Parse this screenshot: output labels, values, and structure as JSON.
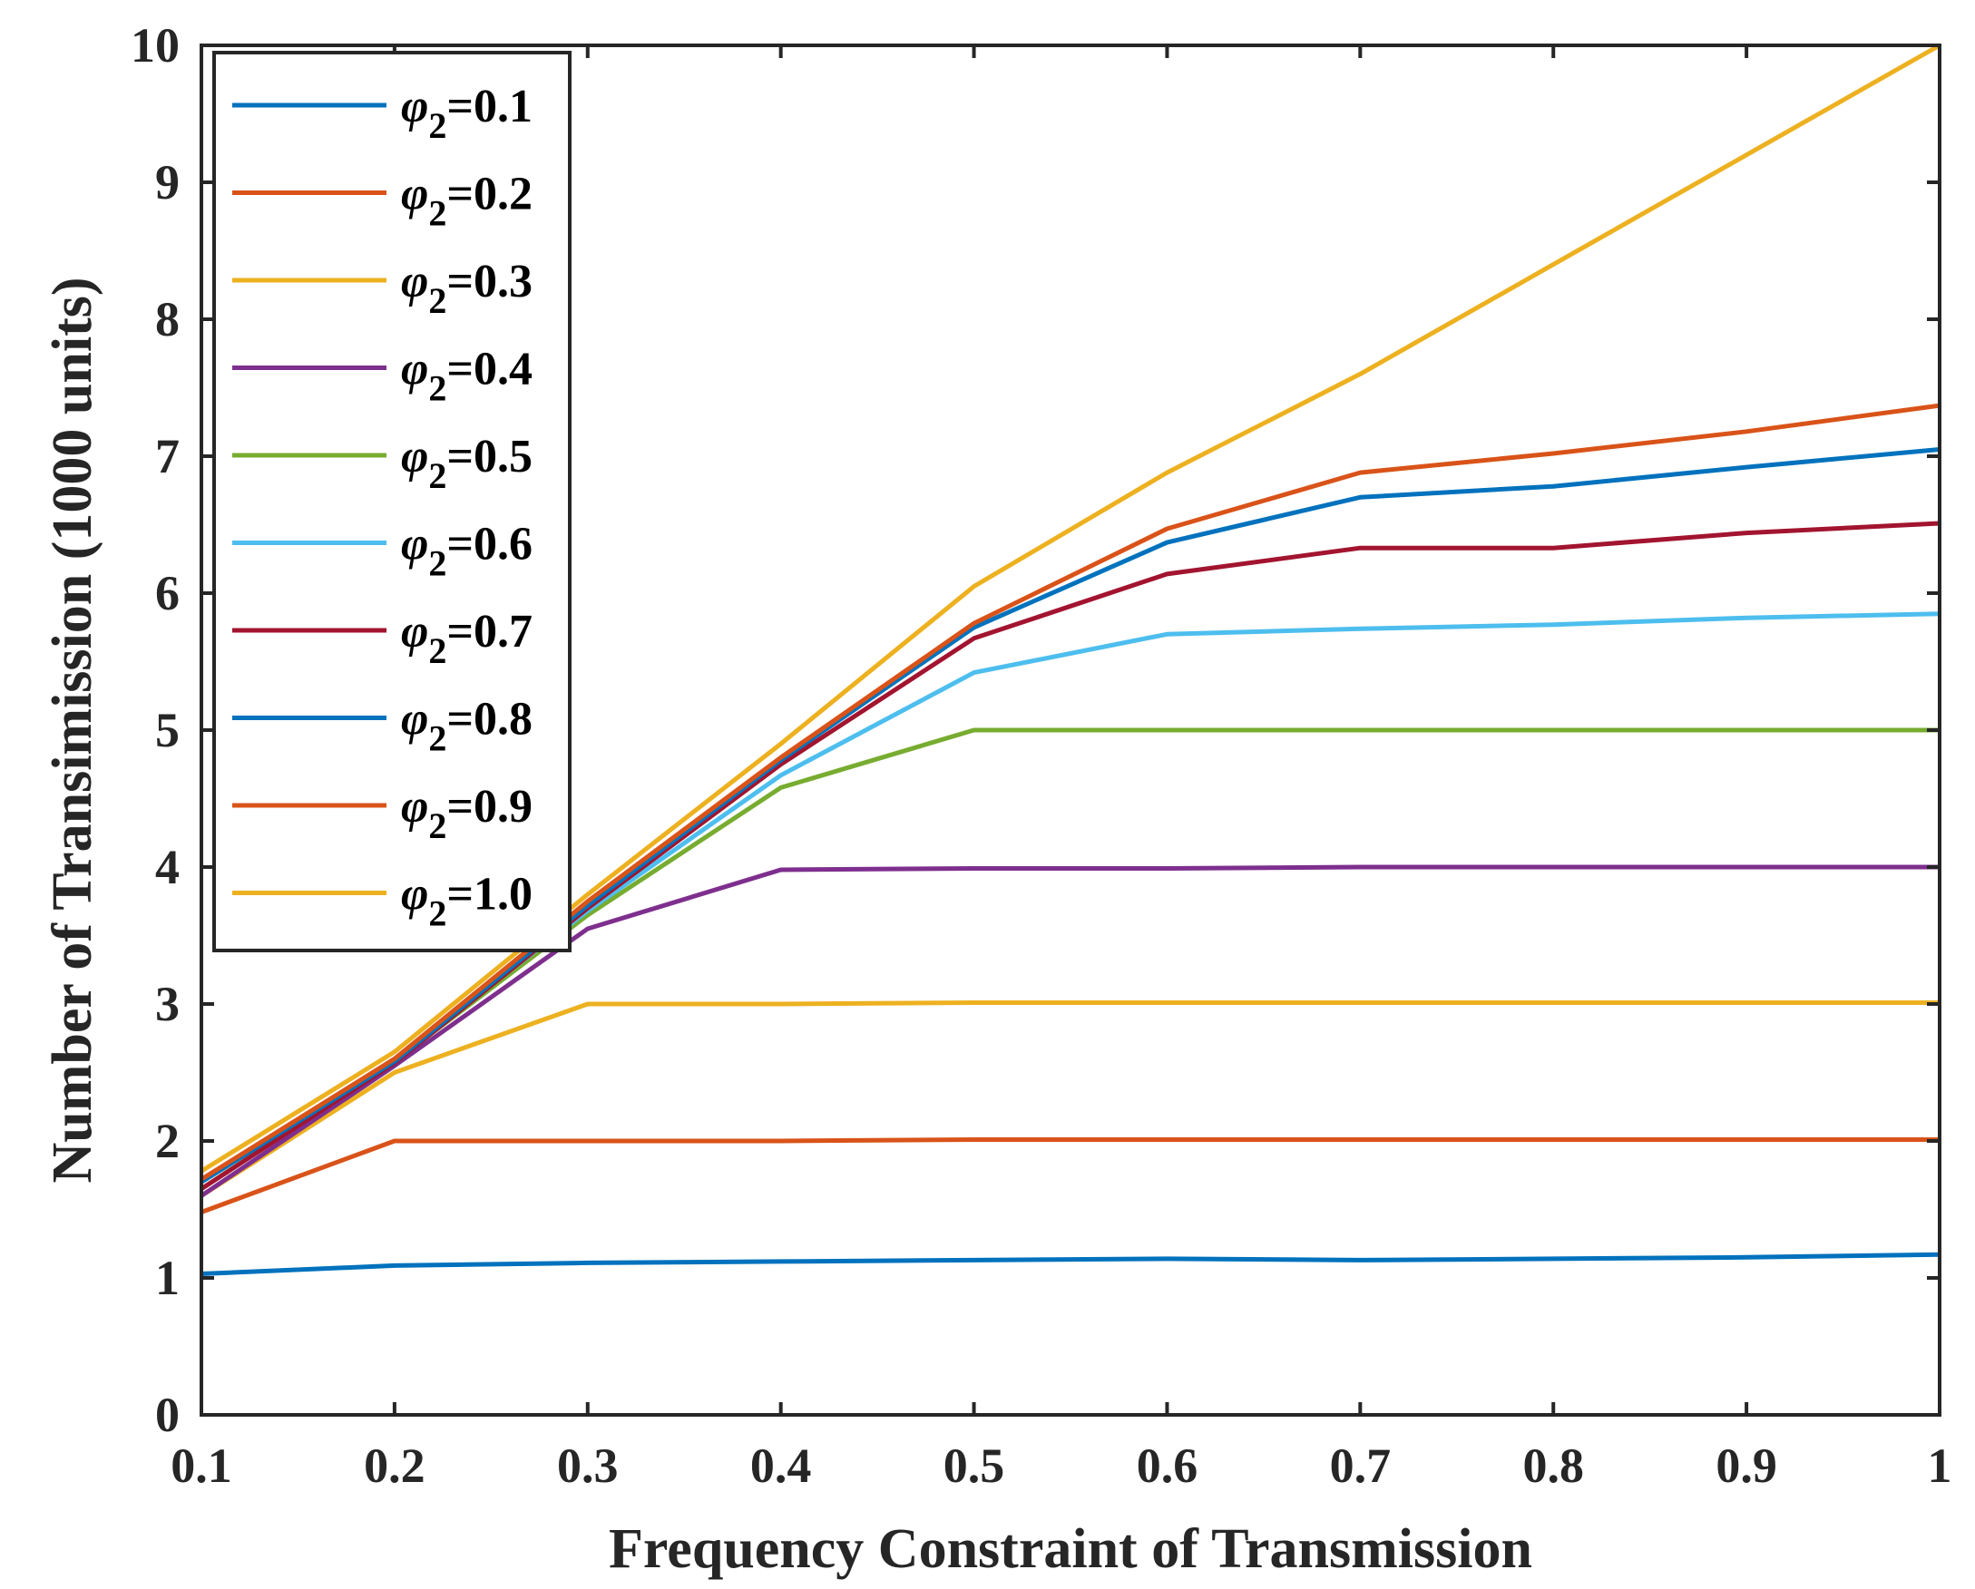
{
  "chart_data": {
    "type": "line",
    "title": "",
    "xlabel": "Frequency Constraint of Transmission",
    "ylabel": "Number of Transimission (1000 units)",
    "xlim": [
      0.1,
      1.0
    ],
    "ylim": [
      0,
      10
    ],
    "x": [
      0.1,
      0.2,
      0.3,
      0.4,
      0.5,
      0.6,
      0.7,
      0.8,
      0.9,
      1.0
    ],
    "xticks": [
      0.1,
      0.2,
      0.3,
      0.4,
      0.5,
      0.6,
      0.7,
      0.8,
      0.9,
      1.0
    ],
    "xtick_labels": [
      "0.1",
      "0.2",
      "0.3",
      "0.4",
      "0.5",
      "0.6",
      "0.7",
      "0.8",
      "0.9",
      "1"
    ],
    "yticks": [
      0,
      1,
      2,
      3,
      4,
      5,
      6,
      7,
      8,
      9,
      10
    ],
    "ytick_labels": [
      "0",
      "1",
      "2",
      "3",
      "4",
      "5",
      "6",
      "7",
      "8",
      "9",
      "10"
    ],
    "grid": false,
    "legend_position": "top-left",
    "legend_symbol": "φ",
    "legend_subscript": "2",
    "series": [
      {
        "name": "=0.1",
        "color": "#0072BD",
        "values": [
          1.03,
          1.09,
          1.11,
          1.12,
          1.13,
          1.14,
          1.13,
          1.14,
          1.15,
          1.17
        ]
      },
      {
        "name": "=0.2",
        "color": "#D95319",
        "values": [
          1.48,
          2.0,
          2.0,
          2.0,
          2.01,
          2.01,
          2.01,
          2.01,
          2.01,
          2.01
        ]
      },
      {
        "name": "=0.3",
        "color": "#EDB120",
        "values": [
          1.6,
          2.5,
          3.0,
          3.0,
          3.01,
          3.01,
          3.01,
          3.01,
          3.01,
          3.01
        ]
      },
      {
        "name": "=0.4",
        "color": "#7E2F8E",
        "values": [
          1.6,
          2.55,
          3.55,
          3.98,
          3.99,
          3.99,
          4.0,
          4.0,
          4.0,
          4.0
        ]
      },
      {
        "name": "=0.5",
        "color": "#77AC30",
        "values": [
          1.65,
          2.58,
          3.65,
          4.58,
          5.0,
          5.0,
          5.0,
          5.0,
          5.0,
          5.0
        ]
      },
      {
        "name": "=0.6",
        "color": "#4DBEEE",
        "values": [
          1.7,
          2.6,
          3.68,
          4.67,
          5.42,
          5.7,
          5.74,
          5.77,
          5.82,
          5.85
        ]
      },
      {
        "name": "=0.7",
        "color": "#A2142F",
        "values": [
          1.65,
          2.57,
          3.7,
          4.75,
          5.67,
          6.14,
          6.33,
          6.33,
          6.44,
          6.51
        ]
      },
      {
        "name": "=0.8",
        "color": "#0072BD",
        "values": [
          1.7,
          2.58,
          3.72,
          4.78,
          5.75,
          6.37,
          6.7,
          6.78,
          6.92,
          7.05
        ]
      },
      {
        "name": "=0.9",
        "color": "#D95319",
        "values": [
          1.72,
          2.6,
          3.75,
          4.8,
          5.78,
          6.47,
          6.88,
          7.02,
          7.18,
          7.37
        ]
      },
      {
        "name": "=1.0",
        "color": "#EDB120",
        "values": [
          1.78,
          2.65,
          3.8,
          4.9,
          6.05,
          6.88,
          7.6,
          8.4,
          9.2,
          10.0
        ]
      }
    ]
  }
}
